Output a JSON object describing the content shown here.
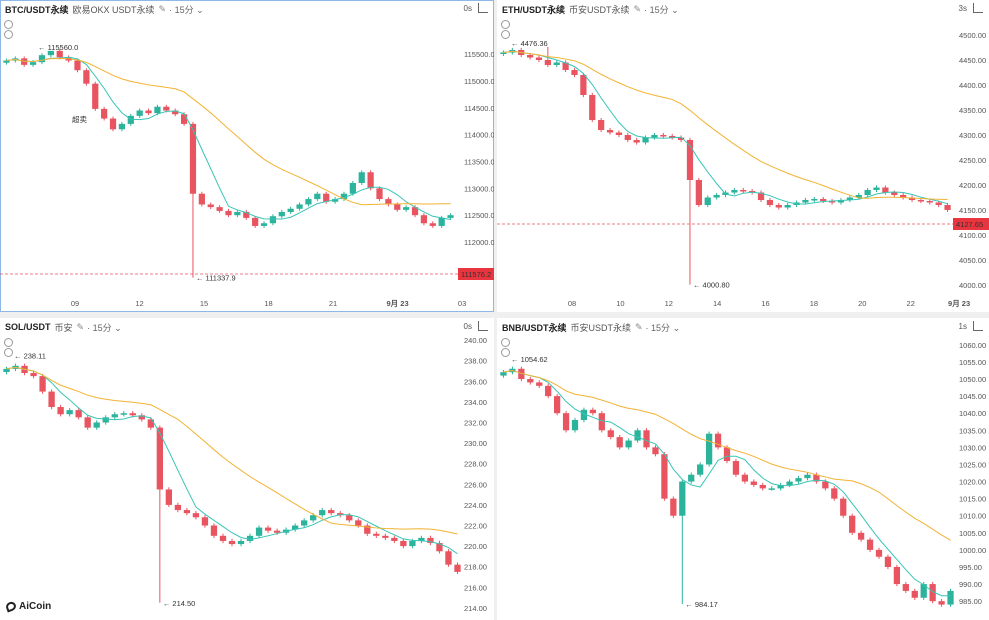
{
  "panels": [
    {
      "id": "btc",
      "symbol": "BTC/USDT永续",
      "exchange": "欧易OKX USDT永续",
      "interval": "15分",
      "countdown": "0s",
      "y_ticks": [
        "115500.0",
        "115000.0",
        "114500.0",
        "114000.0",
        "113500.0",
        "113000.0",
        "112500.0",
        "112000.0"
      ],
      "x_ticks": [
        "09",
        "12",
        "15",
        "18",
        "21",
        "9月 23",
        "03"
      ],
      "price_label": "111576.2",
      "high_label": "115560.0",
      "low_label": "111337.9",
      "signal_label": "超卖",
      "ylim": [
        111200,
        115800
      ],
      "closes": [
        115380,
        115420,
        115300,
        115350,
        115480,
        115560,
        115440,
        115380,
        115200,
        114950,
        114480,
        114300,
        114100,
        114200,
        114350,
        114450,
        114400,
        114520,
        114450,
        114380,
        114200,
        112900,
        112700,
        112650,
        112580,
        112500,
        112560,
        112450,
        112300,
        112350,
        112480,
        112560,
        112620,
        112700,
        112800,
        112900,
        112750,
        112800,
        112900,
        113100,
        113300,
        113000,
        112800,
        112700,
        112600,
        112650,
        112500,
        112350,
        112300,
        112450,
        112500
      ]
    },
    {
      "id": "eth",
      "symbol": "ETH/USDT永续",
      "exchange": "币安USDT永续",
      "interval": "15分",
      "countdown": "3s",
      "y_ticks": [
        "4500.00",
        "4450.00",
        "4400.00",
        "4350.00",
        "4300.00",
        "4250.00",
        "4200.00",
        "4150.00",
        "4100.00",
        "4050.00",
        "4000.00"
      ],
      "x_ticks": [
        "08",
        "10",
        "12",
        "14",
        "16",
        "18",
        "20",
        "22",
        "9月 23"
      ],
      "price_label": "4127.65",
      "high_label": "4476.36",
      "low_label": "4000.80",
      "ylim": [
        3990,
        4510
      ],
      "closes": [
        4465,
        4470,
        4460,
        4455,
        4450,
        4440,
        4445,
        4430,
        4420,
        4380,
        4330,
        4310,
        4305,
        4300,
        4290,
        4285,
        4295,
        4300,
        4298,
        4295,
        4290,
        4210,
        4160,
        4175,
        4180,
        4185,
        4190,
        4188,
        4185,
        4170,
        4160,
        4155,
        4160,
        4165,
        4170,
        4172,
        4168,
        4165,
        4170,
        4175,
        4180,
        4190,
        4195,
        4185,
        4180,
        4175,
        4170,
        4168,
        4165,
        4160,
        4150
      ]
    },
    {
      "id": "sol",
      "symbol": "SOL/USDT",
      "exchange": "币安",
      "interval": "15分",
      "countdown": "0s",
      "y_ticks": [
        "240.00",
        "238.00",
        "236.00",
        "234.00",
        "232.00",
        "230.00",
        "228.00",
        "226.00",
        "224.00",
        "222.00",
        "220.00",
        "218.00",
        "216.00",
        "214.00"
      ],
      "x_ticks": [],
      "price_label": "",
      "high_label": "238.11",
      "low_label": "214.50",
      "ylim": [
        213.8,
        240.2
      ],
      "closes": [
        237.2,
        237.5,
        236.8,
        236.5,
        235.0,
        233.5,
        232.8,
        233.2,
        232.5,
        231.5,
        232.0,
        232.5,
        232.8,
        232.9,
        232.7,
        232.3,
        231.5,
        225.5,
        224.0,
        223.5,
        223.2,
        222.8,
        222.0,
        221.0,
        220.5,
        220.2,
        220.5,
        221.0,
        221.8,
        221.5,
        221.3,
        221.6,
        222.0,
        222.5,
        223.0,
        223.5,
        223.2,
        223.0,
        222.5,
        222.0,
        221.2,
        221.0,
        220.8,
        220.5,
        220.0,
        220.5,
        220.8,
        220.3,
        219.5,
        218.2,
        217.5
      ]
    },
    {
      "id": "bnb",
      "symbol": "BNB/USDT永续",
      "exchange": "币安USDT永续",
      "interval": "15分",
      "countdown": "1s",
      "y_ticks": [
        "1060.00",
        "1055.00",
        "1050.00",
        "1045.00",
        "1040.00",
        "1035.00",
        "1030.00",
        "1025.00",
        "1020.00",
        "1015.00",
        "1010.00",
        "1005.00",
        "1000.00",
        "995.00",
        "990.00",
        "985.00"
      ],
      "x_ticks": [],
      "price_label": "",
      "high_label": "1054.62",
      "low_label": "984.17",
      "ylim": [
        983,
        1062
      ],
      "closes": [
        1052,
        1053,
        1050,
        1049,
        1048,
        1045,
        1040,
        1035,
        1038,
        1041,
        1040,
        1035,
        1033,
        1030,
        1032,
        1035,
        1030,
        1028,
        1015,
        1010,
        1020,
        1022,
        1025,
        1034,
        1030,
        1026,
        1022,
        1020,
        1019,
        1018,
        1018,
        1019,
        1020,
        1021,
        1022,
        1020,
        1018,
        1015,
        1010,
        1005,
        1003,
        1000,
        998,
        995,
        990,
        988,
        986,
        990,
        985,
        984,
        988
      ]
    }
  ],
  "brand": "AiCoin",
  "colors": {
    "up": "#2bb39b",
    "down": "#e8545f",
    "ma_fast": "#36c5b5",
    "ma_slow": "#f3b233",
    "price_bg": "#e8353f"
  }
}
